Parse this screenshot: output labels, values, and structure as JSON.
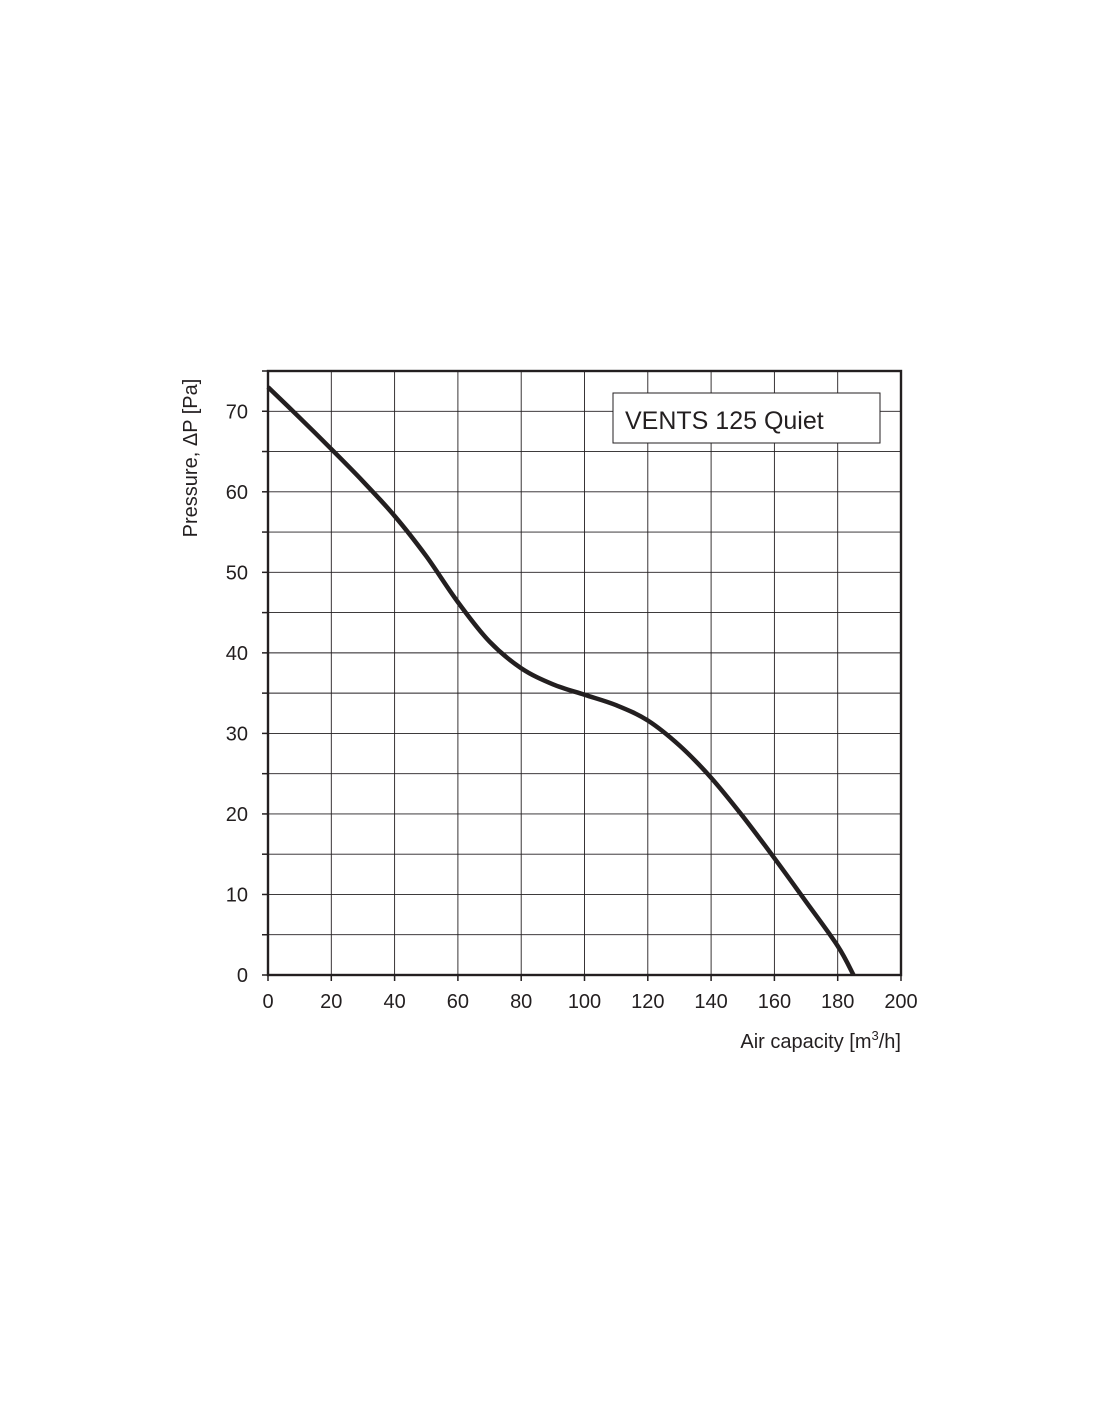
{
  "chart_data": {
    "type": "line",
    "legend_title": "VENTS 125 Quiet",
    "legend_position": "top-right",
    "xlabel": "Air capacity [m",
    "xlabel_sup": "3",
    "xlabel_tail": "/h]",
    "ylabel": "Pressure, ΔP [Pa]",
    "xlim": [
      0,
      200
    ],
    "ylim": [
      0,
      75
    ],
    "grid": true,
    "x_minor_ticks": 20,
    "y_minor_ticks": 5,
    "x_ticks": [
      "0",
      "20",
      "40",
      "60",
      "80",
      "100",
      "120",
      "140",
      "160",
      "180",
      "200"
    ],
    "y_ticks": [
      "0",
      "10",
      "20",
      "30",
      "40",
      "50",
      "60",
      "70"
    ],
    "series": [
      {
        "x": [
          0,
          10,
          20,
          30,
          40,
          50,
          60,
          70,
          80,
          90,
          100,
          110,
          120,
          130,
          140,
          150,
          160,
          170,
          180,
          185
        ],
        "y": [
          73,
          69.2,
          65.3,
          61.3,
          57,
          52,
          46.3,
          41.4,
          38.1,
          36.1,
          34.8,
          33.5,
          31.6,
          28.5,
          24.5,
          19.7,
          14.5,
          9.1,
          3.6,
          0
        ]
      }
    ],
    "colors": {
      "line": "#231f20",
      "grid": "#231f20",
      "background": "#ffffff"
    }
  }
}
